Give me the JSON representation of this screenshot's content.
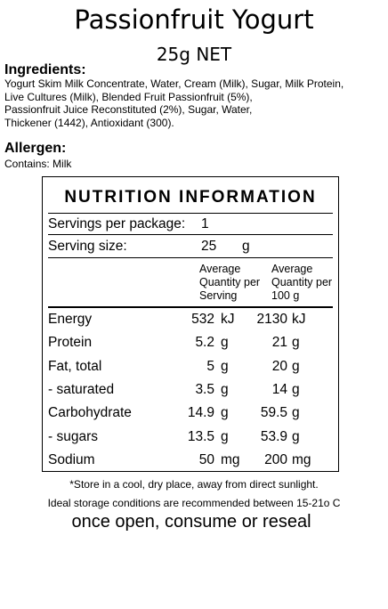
{
  "title": "Passionfruit Yogurt",
  "net_weight": "25g NET",
  "ingredients": {
    "heading": "Ingredients:",
    "text": "Yogurt Skim Milk Concentrate, Water, Cream (Milk), Sugar, Milk Protein,\nLive Cultures (Milk), Blended Fruit Passionfruit (5%),\nPassionfruit Juice Reconstituted (2%), Sugar, Water,\n Thickener (1442), Antioxidant (300)."
  },
  "allergen": {
    "heading": "Allergen:",
    "text": "Contains: Milk"
  },
  "nutrition": {
    "title": "NUTRITION INFORMATION",
    "servings_label": "Servings per package:",
    "servings_value": "1",
    "serving_size_label": "Serving size:",
    "serving_size_value": "25",
    "serving_size_unit": "g",
    "col1_header": "Average\nQuantity per\nServing",
    "col2_header": "Average\nQuantity per\n100 g",
    "rows": [
      {
        "label": "Energy",
        "per_serving": "532",
        "unit1": "kJ",
        "per_100g": "2130",
        "unit2": "kJ"
      },
      {
        "label": "Protein",
        "per_serving": "5.2",
        "unit1": "g",
        "per_100g": "21",
        "unit2": "g"
      },
      {
        "label": "Fat, total",
        "per_serving": "5",
        "unit1": "g",
        "per_100g": "20",
        "unit2": "g"
      },
      {
        "label": "- saturated",
        "per_serving": "3.5",
        "unit1": "g",
        "per_100g": "14",
        "unit2": "g"
      },
      {
        "label": "Carbohydrate",
        "per_serving": "14.9",
        "unit1": "g",
        "per_100g": "59.5",
        "unit2": "g"
      },
      {
        "label": "- sugars",
        "per_serving": "13.5",
        "unit1": "g",
        "per_100g": "53.9",
        "unit2": "g"
      },
      {
        "label": "Sodium",
        "per_serving": "50",
        "unit1": "mg",
        "per_100g": "200",
        "unit2": "mg"
      }
    ]
  },
  "footer": {
    "storage": "*Store in a cool, dry place, away from direct sunlight.",
    "conditions": "Ideal storage conditions are recommended between 15-21o C",
    "open_note": "once open, consume or reseal"
  }
}
